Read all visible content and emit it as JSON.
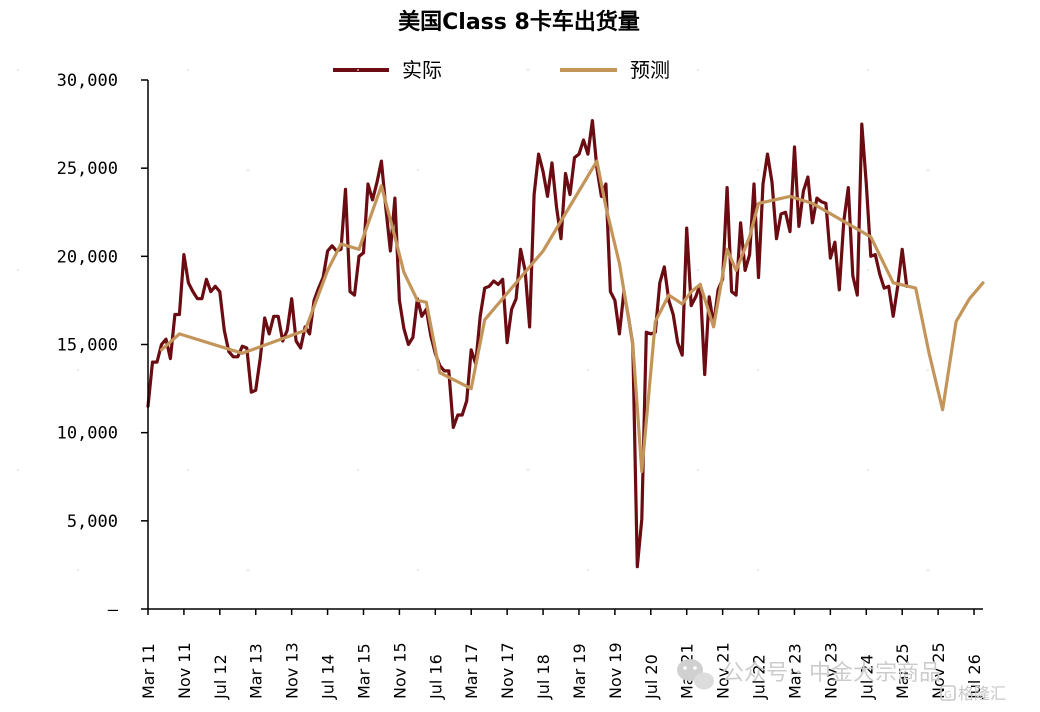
{
  "chart_data": {
    "type": "line",
    "title": "美国Class 8卡车出货量",
    "ylim": [
      0,
      30000
    ],
    "y_ticks": [
      "30,000",
      "25,000",
      "20,000",
      "15,000",
      "10,000",
      "5,000",
      "–"
    ],
    "y_tick_values": [
      30000,
      25000,
      20000,
      15000,
      10000,
      5000,
      0
    ],
    "x_range": [
      "2011-03",
      "2026-09"
    ],
    "x_tick_labels": [
      "Mar 11",
      "Nov 11",
      "Jul 12",
      "Mar 13",
      "Nov 13",
      "Jul 14",
      "Mar 15",
      "Nov 15",
      "Jul 16",
      "Mar 17",
      "Nov 17",
      "Jul 18",
      "Mar 19",
      "Nov 19",
      "Jul 20",
      "Mar 21",
      "Nov 21",
      "Jul 22",
      "Mar 23",
      "Nov 23",
      "Jul 24",
      "Mar 25",
      "Nov 25",
      "Jul 26"
    ],
    "x_tick_dates": [
      "2011-03",
      "2011-11",
      "2012-07",
      "2013-03",
      "2013-11",
      "2014-07",
      "2015-03",
      "2015-11",
      "2016-07",
      "2017-03",
      "2017-11",
      "2018-07",
      "2019-03",
      "2019-11",
      "2020-07",
      "2021-03",
      "2021-11",
      "2022-07",
      "2023-03",
      "2023-11",
      "2024-07",
      "2025-03",
      "2025-11",
      "2026-07"
    ],
    "legend_position": "top-center",
    "grid": false,
    "series": [
      {
        "name": "实际",
        "color": "#6b0b12",
        "points": [
          [
            "2011-03",
            11500
          ],
          [
            "2011-04",
            14000
          ],
          [
            "2011-05",
            14000
          ],
          [
            "2011-06",
            15000
          ],
          [
            "2011-07",
            15300
          ],
          [
            "2011-08",
            14200
          ],
          [
            "2011-09",
            16700
          ],
          [
            "2011-10",
            16700
          ],
          [
            "2011-11",
            20100
          ],
          [
            "2011-12",
            18500
          ],
          [
            "2012-01",
            18000
          ],
          [
            "2012-02",
            17600
          ],
          [
            "2012-03",
            17600
          ],
          [
            "2012-04",
            18700
          ],
          [
            "2012-05",
            18000
          ],
          [
            "2012-06",
            18300
          ],
          [
            "2012-07",
            18000
          ],
          [
            "2012-08",
            15800
          ],
          [
            "2012-09",
            14600
          ],
          [
            "2012-10",
            14300
          ],
          [
            "2012-11",
            14300
          ],
          [
            "2012-12",
            14900
          ],
          [
            "2013-01",
            14800
          ],
          [
            "2013-02",
            12300
          ],
          [
            "2013-03",
            12400
          ],
          [
            "2013-04",
            14200
          ],
          [
            "2013-05",
            16500
          ],
          [
            "2013-06",
            15600
          ],
          [
            "2013-07",
            16600
          ],
          [
            "2013-08",
            16600
          ],
          [
            "2013-09",
            15200
          ],
          [
            "2013-10",
            15800
          ],
          [
            "2013-11",
            17600
          ],
          [
            "2013-12",
            15200
          ],
          [
            "2014-01",
            14800
          ],
          [
            "2014-02",
            16000
          ],
          [
            "2014-03",
            15600
          ],
          [
            "2014-04",
            17500
          ],
          [
            "2014-05",
            18200
          ],
          [
            "2014-06",
            18800
          ],
          [
            "2014-07",
            20300
          ],
          [
            "2014-08",
            20600
          ],
          [
            "2014-09",
            20300
          ],
          [
            "2014-10",
            20400
          ],
          [
            "2014-11",
            23800
          ],
          [
            "2014-12",
            18000
          ],
          [
            "2015-01",
            17800
          ],
          [
            "2015-02",
            20000
          ],
          [
            "2015-03",
            20200
          ],
          [
            "2015-04",
            24100
          ],
          [
            "2015-05",
            23200
          ],
          [
            "2015-06",
            24200
          ],
          [
            "2015-07",
            25400
          ],
          [
            "2015-08",
            22700
          ],
          [
            "2015-09",
            20300
          ],
          [
            "2015-10",
            23300
          ],
          [
            "2015-11",
            17500
          ],
          [
            "2015-12",
            15900
          ],
          [
            "2016-01",
            15000
          ],
          [
            "2016-02",
            15400
          ],
          [
            "2016-03",
            17600
          ],
          [
            "2016-04",
            16600
          ],
          [
            "2016-05",
            17000
          ],
          [
            "2016-06",
            15500
          ],
          [
            "2016-07",
            14500
          ],
          [
            "2016-08",
            13800
          ],
          [
            "2016-09",
            13500
          ],
          [
            "2016-10",
            13500
          ],
          [
            "2016-11",
            10300
          ],
          [
            "2016-12",
            11000
          ],
          [
            "2017-01",
            11000
          ],
          [
            "2017-02",
            11800
          ],
          [
            "2017-03",
            14700
          ],
          [
            "2017-04",
            13900
          ],
          [
            "2017-05",
            16600
          ],
          [
            "2017-06",
            18200
          ],
          [
            "2017-07",
            18300
          ],
          [
            "2017-08",
            18600
          ],
          [
            "2017-09",
            18400
          ],
          [
            "2017-10",
            18700
          ],
          [
            "2017-11",
            15100
          ],
          [
            "2017-12",
            17000
          ],
          [
            "2018-01",
            17600
          ],
          [
            "2018-02",
            20400
          ],
          [
            "2018-03",
            19200
          ],
          [
            "2018-04",
            16000
          ],
          [
            "2018-05",
            23500
          ],
          [
            "2018-06",
            25800
          ],
          [
            "2018-07",
            24800
          ],
          [
            "2018-08",
            23400
          ],
          [
            "2018-09",
            25300
          ],
          [
            "2018-10",
            22800
          ],
          [
            "2018-11",
            21000
          ],
          [
            "2018-12",
            24700
          ],
          [
            "2019-01",
            23500
          ],
          [
            "2019-02",
            25600
          ],
          [
            "2019-03",
            25800
          ],
          [
            "2019-04",
            26600
          ],
          [
            "2019-05",
            25800
          ],
          [
            "2019-06",
            27700
          ],
          [
            "2019-07",
            25000
          ],
          [
            "2019-08",
            23400
          ],
          [
            "2019-09",
            24100
          ],
          [
            "2019-10",
            18000
          ],
          [
            "2019-11",
            17500
          ],
          [
            "2019-12",
            15600
          ],
          [
            "2020-01",
            18000
          ],
          [
            "2020-02",
            16600
          ],
          [
            "2020-03",
            15000
          ],
          [
            "2020-04",
            2400
          ],
          [
            "2020-05",
            5100
          ],
          [
            "2020-06",
            15700
          ],
          [
            "2020-07",
            15600
          ],
          [
            "2020-08",
            15700
          ],
          [
            "2020-09",
            18500
          ],
          [
            "2020-10",
            19400
          ],
          [
            "2020-11",
            17500
          ],
          [
            "2020-12",
            16700
          ],
          [
            "2021-01",
            15100
          ],
          [
            "2021-02",
            14400
          ],
          [
            "2021-03",
            21600
          ],
          [
            "2021-04",
            17200
          ],
          [
            "2021-05",
            17700
          ],
          [
            "2021-06",
            18400
          ],
          [
            "2021-07",
            13300
          ],
          [
            "2021-08",
            17700
          ],
          [
            "2021-09",
            16100
          ],
          [
            "2021-10",
            18100
          ],
          [
            "2021-11",
            18700
          ],
          [
            "2021-12",
            23900
          ],
          [
            "2022-01",
            18000
          ],
          [
            "2022-02",
            17800
          ],
          [
            "2022-03",
            21900
          ],
          [
            "2022-04",
            19200
          ],
          [
            "2022-05",
            20100
          ],
          [
            "2022-06",
            24100
          ],
          [
            "2022-07",
            18800
          ],
          [
            "2022-08",
            24100
          ],
          [
            "2022-09",
            25800
          ],
          [
            "2022-10",
            24200
          ],
          [
            "2022-11",
            21000
          ],
          [
            "2022-12",
            22400
          ],
          [
            "2023-01",
            22500
          ],
          [
            "2023-02",
            21400
          ],
          [
            "2023-03",
            26200
          ],
          [
            "2023-04",
            21700
          ],
          [
            "2023-05",
            23700
          ],
          [
            "2023-06",
            24500
          ],
          [
            "2023-07",
            21900
          ],
          [
            "2023-08",
            23300
          ],
          [
            "2023-09",
            23100
          ],
          [
            "2023-10",
            23000
          ],
          [
            "2023-11",
            19900
          ],
          [
            "2023-12",
            20800
          ],
          [
            "2024-01",
            18100
          ],
          [
            "2024-02",
            22000
          ],
          [
            "2024-03",
            23900
          ],
          [
            "2024-04",
            18900
          ],
          [
            "2024-05",
            17800
          ],
          [
            "2024-06",
            27500
          ],
          [
            "2024-07",
            24100
          ],
          [
            "2024-08",
            20000
          ],
          [
            "2024-09",
            20100
          ],
          [
            "2024-10",
            19000
          ],
          [
            "2024-11",
            18200
          ],
          [
            "2024-12",
            18300
          ],
          [
            "2025-01",
            16600
          ],
          [
            "2025-02",
            18300
          ],
          [
            "2025-03",
            20400
          ],
          [
            "2025-04",
            18300
          ]
        ]
      },
      {
        "name": "预测",
        "color": "#c4955a",
        "points": [
          [
            "2011-06",
            14700
          ],
          [
            "2011-10",
            15600
          ],
          [
            "2012-12",
            14500
          ],
          [
            "2014-02",
            15800
          ],
          [
            "2014-07",
            19200
          ],
          [
            "2014-10",
            20700
          ],
          [
            "2015-02",
            20400
          ],
          [
            "2015-07",
            24000
          ],
          [
            "2015-10",
            21100
          ],
          [
            "2015-12",
            19100
          ],
          [
            "2016-03",
            17500
          ],
          [
            "2016-05",
            17400
          ],
          [
            "2016-08",
            13400
          ],
          [
            "2017-03",
            12500
          ],
          [
            "2017-06",
            16400
          ],
          [
            "2018-07",
            20300
          ],
          [
            "2019-07",
            25400
          ],
          [
            "2019-09",
            22800
          ],
          [
            "2019-12",
            19600
          ],
          [
            "2020-03",
            15000
          ],
          [
            "2020-05",
            7800
          ],
          [
            "2020-08",
            16300
          ],
          [
            "2020-11",
            17800
          ],
          [
            "2021-02",
            17300
          ],
          [
            "2021-04",
            18000
          ],
          [
            "2021-06",
            18400
          ],
          [
            "2021-09",
            16000
          ],
          [
            "2021-12",
            20400
          ],
          [
            "2022-02",
            19200
          ],
          [
            "2022-05",
            21100
          ],
          [
            "2022-07",
            23000
          ],
          [
            "2023-02",
            23400
          ],
          [
            "2023-07",
            23000
          ],
          [
            "2024-08",
            21100
          ],
          [
            "2025-01",
            18500
          ],
          [
            "2025-06",
            18200
          ],
          [
            "2025-09",
            14500
          ],
          [
            "2025-12",
            11300
          ],
          [
            "2026-03",
            16300
          ],
          [
            "2026-06",
            17600
          ],
          [
            "2026-09",
            18500
          ]
        ]
      }
    ]
  },
  "watermark": {
    "text": "公众号 · 中金大宗商品",
    "corner_text": "格隆汇"
  }
}
